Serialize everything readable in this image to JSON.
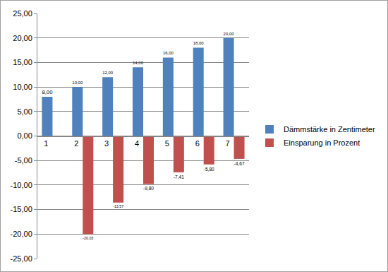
{
  "chart_data": {
    "type": "bar",
    "categories": [
      "1",
      "2",
      "3",
      "4",
      "5",
      "6",
      "7"
    ],
    "series": [
      {
        "name": "Dämmstärke in Zentimeter",
        "color": "#4f81bd",
        "values": [
          8,
          10,
          12,
          14,
          16,
          18,
          20
        ],
        "value_labels": [
          "8,00",
          "10,00",
          "12,00",
          "14,00",
          "16,00",
          "18,00",
          "20,00"
        ]
      },
      {
        "name": "Einsparung in Prozent",
        "color": "#c0504d",
        "values": [
          null,
          -20.03,
          -13.57,
          -9.8,
          -7.41,
          -5.8,
          -4.67
        ],
        "value_labels": [
          null,
          "-20,03",
          "-13,57",
          "-9,80",
          "-7,41",
          "-5,80",
          "-4,67"
        ]
      }
    ],
    "ylim": [
      -25,
      25
    ],
    "yticks": [
      {
        "value": -25,
        "label": "-25,00"
      },
      {
        "value": -20,
        "label": "-20,00"
      },
      {
        "value": -15,
        "label": "-15,00"
      },
      {
        "value": -10,
        "label": "-10,00"
      },
      {
        "value": -5,
        "label": "-5,00"
      },
      {
        "value": 0,
        "label": "0,00"
      },
      {
        "value": 5,
        "label": "5,00"
      },
      {
        "value": 10,
        "label": "10,00"
      },
      {
        "value": 15,
        "label": "15,00"
      },
      {
        "value": 20,
        "label": "20,00"
      },
      {
        "value": 25,
        "label": "25,00"
      }
    ],
    "grid": true,
    "legend": "right",
    "data_labels": true
  }
}
